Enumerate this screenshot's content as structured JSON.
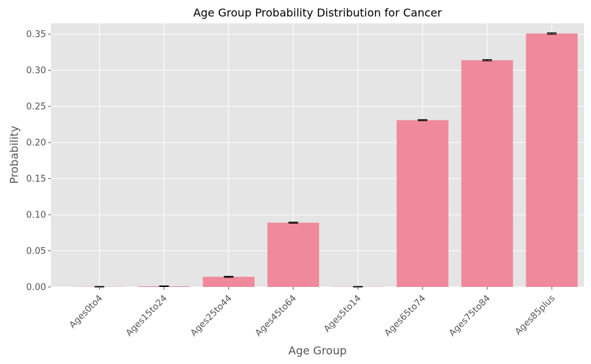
{
  "chart_data": {
    "type": "bar",
    "title": "Age Group Probability Distribution for Cancer",
    "xlabel": "Age Group",
    "ylabel": "Probability",
    "categories": [
      "Ages0to4",
      "Ages15to24",
      "Ages25to44",
      "Ages45to64",
      "Ages5to14",
      "Ages65to74",
      "Ages75to84",
      "Ages85plus"
    ],
    "values": [
      0.0003,
      0.001,
      0.014,
      0.089,
      0.0003,
      0.231,
      0.314,
      0.351
    ],
    "error": [
      0.0003,
      0.0004,
      0.0007,
      0.0007,
      0.0003,
      0.0008,
      0.0009,
      0.0009
    ],
    "ylim": [
      0,
      0.365
    ],
    "yticks": [
      0.0,
      0.05,
      0.1,
      0.15,
      0.2,
      0.25,
      0.3,
      0.35
    ],
    "ytick_labels": [
      "0.00",
      "0.05",
      "0.10",
      "0.15",
      "0.20",
      "0.25",
      "0.30",
      "0.35"
    ],
    "grid": true,
    "colors": {
      "bar": "#f0899b",
      "background": "#e5e5e5",
      "grid": "#ffffff",
      "error": "#000000"
    }
  }
}
